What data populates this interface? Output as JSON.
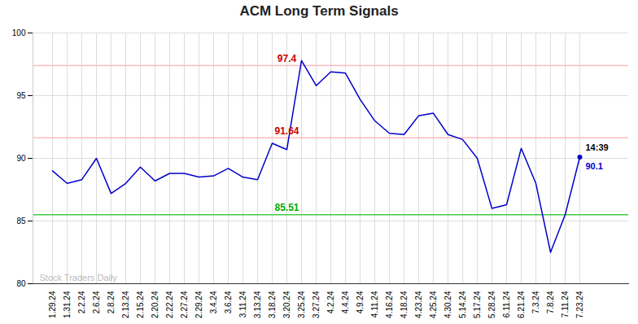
{
  "chart_data": {
    "type": "line",
    "title": "ACM Long Term Signals",
    "categories": [
      "1.29.24",
      "1.31.24",
      "2.2.24",
      "2.6.24",
      "2.8.24",
      "2.13.24",
      "2.15.24",
      "2.20.24",
      "2.22.24",
      "2.27.24",
      "2.29.24",
      "3.4.24",
      "3.6.24",
      "3.11.24",
      "3.13.24",
      "3.18.24",
      "3.20.24",
      "3.25.24",
      "3.27.24",
      "4.2.24",
      "4.4.24",
      "4.9.24",
      "4.11.24",
      "4.16.24",
      "4.18.24",
      "4.23.24",
      "4.25.24",
      "4.30.24",
      "5.14.24",
      "5.17.24",
      "5.28.24",
      "6.11.24",
      "6.21.24",
      "7.3.24",
      "7.8.24",
      "7.11.24",
      "7.23.24"
    ],
    "values": [
      89.0,
      88.0,
      88.3,
      90.0,
      87.2,
      88.0,
      89.3,
      88.2,
      88.8,
      88.8,
      88.5,
      88.6,
      89.2,
      88.5,
      88.3,
      91.2,
      90.7,
      97.8,
      95.8,
      96.9,
      96.8,
      94.7,
      93.0,
      92.0,
      91.9,
      93.4,
      93.6,
      91.9,
      91.5,
      90.0,
      86.0,
      86.3,
      90.8,
      88.0,
      82.5,
      85.5,
      90.1
    ],
    "color": "#0000cc",
    "hlines": [
      {
        "value": 97.4,
        "color": "#ffbbbb",
        "label": "97.4",
        "label_color": "#cc0000"
      },
      {
        "value": 91.64,
        "color": "#ffbbbb",
        "label": "91.64",
        "label_color": "#cc0000"
      },
      {
        "value": 85.51,
        "color": "#44cc44",
        "label": "85.51",
        "label_color": "#00aa00"
      }
    ],
    "annotations": [
      {
        "text": "14:39",
        "color": "#000000"
      },
      {
        "text": "90.1",
        "color": "#0000cc"
      }
    ],
    "watermark": {
      "text": "Stock Traders Daily",
      "color": "#bbbbbb"
    },
    "ylim": [
      80,
      100
    ],
    "yticks": [
      80,
      85,
      90,
      95,
      100
    ],
    "grid": true
  }
}
